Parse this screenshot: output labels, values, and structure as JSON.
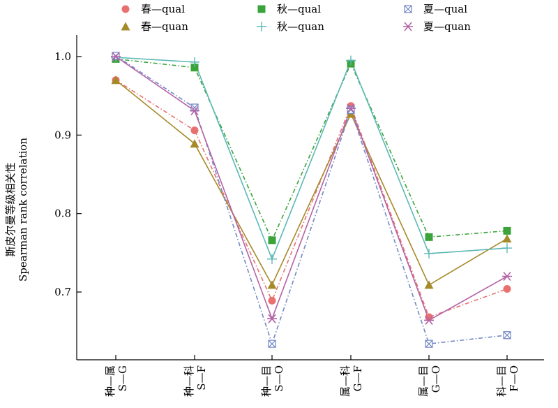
{
  "chart_data": {
    "type": "line",
    "title": "",
    "xlabel": "",
    "ylabel_cn": "斯皮尔曼等级相关性",
    "ylabel_en": "Spearman rank correlation",
    "ylim": [
      0.62,
      1.04
    ],
    "yticks": [
      "0.7",
      "0.8",
      "0.9",
      "1.0"
    ],
    "ytick_values": [
      0.7,
      0.8,
      0.9,
      1.0
    ],
    "grid": false,
    "legend_position": "top",
    "categories": [
      {
        "cn": "种—属",
        "en": "S—G"
      },
      {
        "cn": "种—科",
        "en": "S—F"
      },
      {
        "cn": "种—目",
        "en": "S—O"
      },
      {
        "cn": "属—科",
        "en": "G—F"
      },
      {
        "cn": "属—目",
        "en": "G—O"
      },
      {
        "cn": "科—目",
        "en": "F—O"
      }
    ],
    "series": [
      {
        "name": "春—qual",
        "color": "#e8706f",
        "marker": "circle",
        "dash": "dashdot",
        "values": [
          0.97,
          0.906,
          0.689,
          0.937,
          0.668,
          0.704
        ]
      },
      {
        "name": "春—quan",
        "color": "#a58a2a",
        "marker": "triangle",
        "dash": "solid",
        "values": [
          0.97,
          0.889,
          0.709,
          0.927,
          0.709,
          0.768
        ]
      },
      {
        "name": "秋—qual",
        "color": "#3aa33a",
        "marker": "square",
        "dash": "dashdot",
        "values": [
          0.997,
          0.986,
          0.766,
          0.991,
          0.77,
          0.778
        ]
      },
      {
        "name": "秋—quan",
        "color": "#5ab8b6",
        "marker": "plus",
        "dash": "solid",
        "values": [
          0.999,
          0.993,
          0.742,
          0.995,
          0.749,
          0.756
        ]
      },
      {
        "name": "夏—qual",
        "color": "#7389c4",
        "marker": "boxx",
        "dash": "dashdot",
        "values": [
          1.001,
          0.935,
          0.634,
          0.932,
          0.634,
          0.645
        ]
      },
      {
        "name": "夏—quan",
        "color": "#b462a6",
        "marker": "asterisk",
        "dash": "solid",
        "values": [
          1.0,
          0.931,
          0.666,
          0.934,
          0.664,
          0.72
        ]
      }
    ]
  }
}
